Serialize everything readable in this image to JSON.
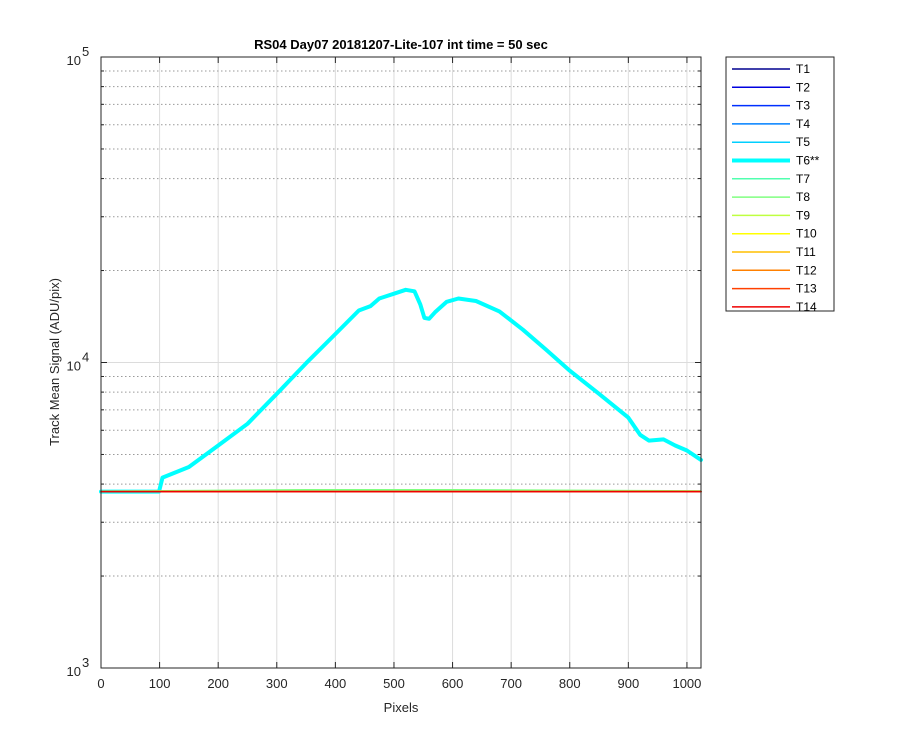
{
  "chart_data": {
    "type": "line",
    "title": "RS04 Day07 20181207-Lite-107 int time = 50 sec",
    "xlabel": "Pixels",
    "ylabel": "Track Mean Signal (ADU/pix)",
    "xlim": [
      0,
      1024
    ],
    "ylim": [
      1000,
      100000
    ],
    "yscale": "log",
    "grid": true,
    "legend_position": "outside-right-top",
    "x_ticks": [
      "0",
      "100",
      "200",
      "300",
      "400",
      "500",
      "600",
      "700",
      "800",
      "900",
      "1000"
    ],
    "y_tick_labels": [
      {
        "base": "10",
        "exp": "3",
        "value": 1000
      },
      {
        "base": "10",
        "exp": "4",
        "value": 10000
      },
      {
        "base": "10",
        "exp": "5",
        "value": 100000
      }
    ],
    "series": [
      {
        "name": "T1",
        "color": "#00008F",
        "width": 1.5,
        "x": [
          0,
          1024
        ],
        "y": [
          3780,
          3780
        ]
      },
      {
        "name": "T2",
        "color": "#0000DF",
        "width": 1.5,
        "x": [
          0,
          1024
        ],
        "y": [
          3780,
          3780
        ]
      },
      {
        "name": "T3",
        "color": "#0030FF",
        "width": 1.5,
        "x": [
          0,
          1024
        ],
        "y": [
          3780,
          3780
        ]
      },
      {
        "name": "T4",
        "color": "#0080FF",
        "width": 1.5,
        "x": [
          0,
          1024
        ],
        "y": [
          3780,
          3780
        ]
      },
      {
        "name": "T5",
        "color": "#00CFFF",
        "width": 1.5,
        "x": [
          0,
          1024
        ],
        "y": [
          3780,
          3780
        ]
      },
      {
        "name": "T6**",
        "color": "#00FFFF",
        "width": 4,
        "x": [
          0,
          99,
          105,
          150,
          200,
          250,
          300,
          350,
          400,
          440,
          460,
          475,
          500,
          520,
          535,
          545,
          552,
          560,
          570,
          590,
          610,
          640,
          680,
          720,
          760,
          800,
          850,
          900,
          920,
          935,
          960,
          980,
          1000,
          1024
        ],
        "y": [
          3780,
          3780,
          4200,
          4550,
          5350,
          6300,
          7900,
          9950,
          12400,
          14800,
          15300,
          16200,
          16800,
          17300,
          17100,
          15500,
          14000,
          13900,
          14600,
          15800,
          16200,
          15900,
          14700,
          12800,
          11000,
          9400,
          7900,
          6600,
          5800,
          5550,
          5600,
          5350,
          5150,
          4800
        ]
      },
      {
        "name": "T7",
        "color": "#50FFAF",
        "width": 1.5,
        "x": [
          0,
          1024
        ],
        "y": [
          3780,
          3780
        ]
      },
      {
        "name": "T8",
        "color": "#80FF80",
        "width": 1.5,
        "x": [
          0,
          350,
          600,
          1024
        ],
        "y": [
          3790,
          3830,
          3830,
          3800
        ]
      },
      {
        "name": "T9",
        "color": "#BFFF40",
        "width": 1.5,
        "x": [
          0,
          1024
        ],
        "y": [
          3780,
          3780
        ]
      },
      {
        "name": "T10",
        "color": "#FFFF00",
        "width": 1.5,
        "x": [
          0,
          1024
        ],
        "y": [
          3780,
          3780
        ]
      },
      {
        "name": "T11",
        "color": "#FFBF00",
        "width": 1.5,
        "x": [
          0,
          1024
        ],
        "y": [
          3780,
          3780
        ]
      },
      {
        "name": "T12",
        "color": "#FF8000",
        "width": 1.5,
        "x": [
          0,
          1024
        ],
        "y": [
          3780,
          3780
        ]
      },
      {
        "name": "T13",
        "color": "#FF4000",
        "width": 1.5,
        "x": [
          0,
          1024
        ],
        "y": [
          3780,
          3780
        ]
      },
      {
        "name": "T14",
        "color": "#EF0000",
        "width": 1.5,
        "x": [
          0,
          1024
        ],
        "y": [
          3780,
          3780
        ]
      }
    ]
  }
}
